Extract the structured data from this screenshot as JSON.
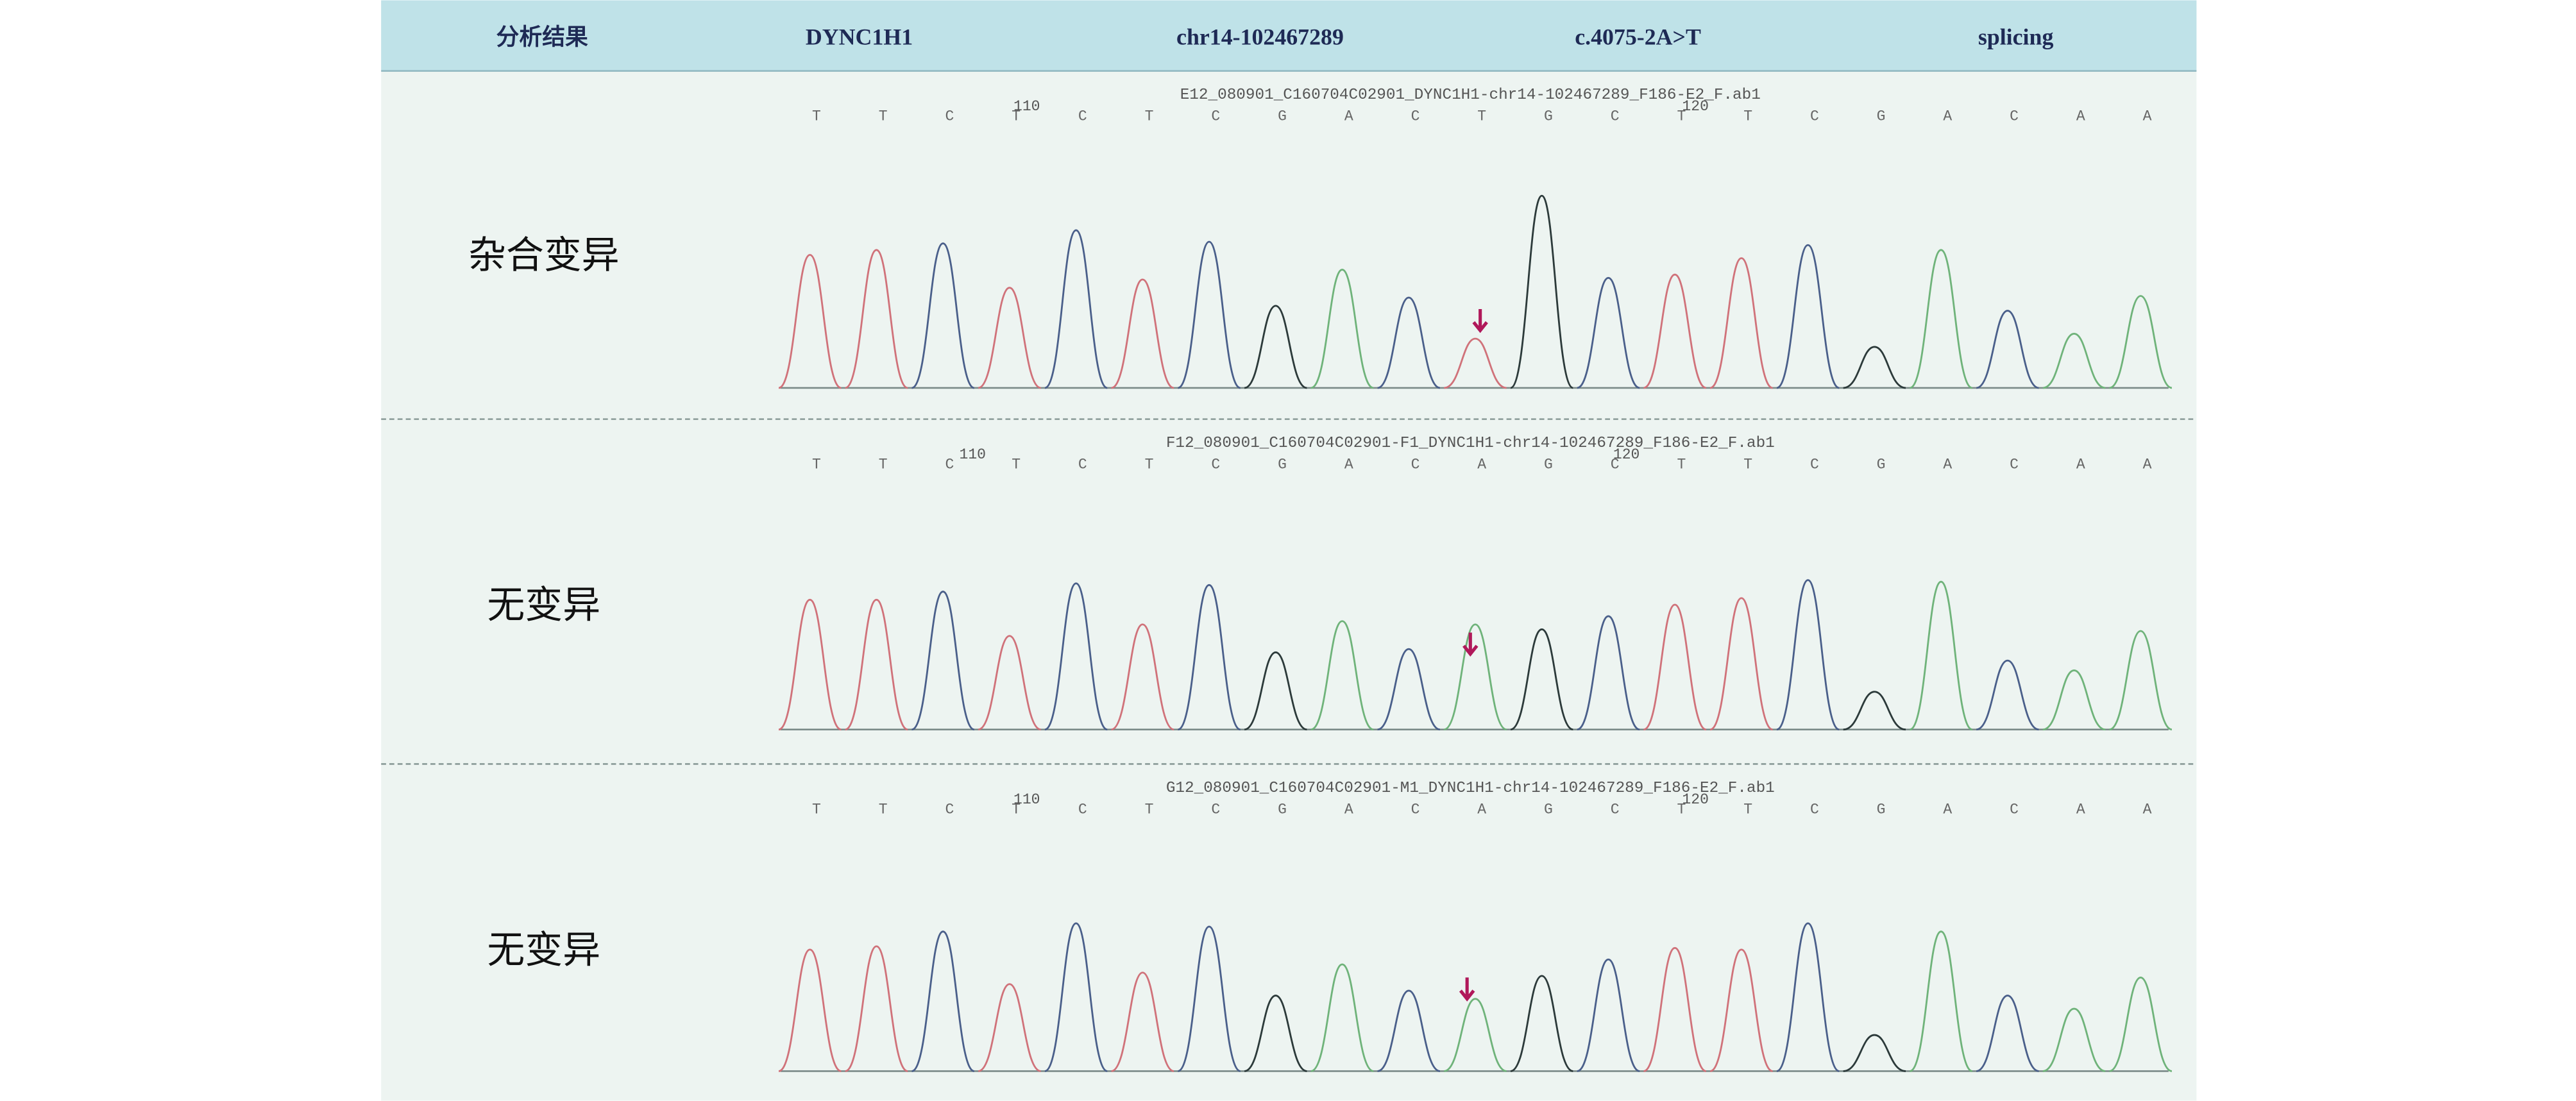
{
  "header": {
    "cells": [
      "分析结果",
      "DYNC1H1",
      "chr14-102467289",
      "c.4075-2A>T",
      "splicing"
    ]
  },
  "panels": [
    {
      "label": "杂合变异",
      "file": "E12_080901_C160704C02901_DYNC1H1-chr14-102467289_F186-E2_F.ab1",
      "positions": [
        "110",
        "120"
      ],
      "bases": [
        "T",
        "T",
        "C",
        "T",
        "C",
        "T",
        "C",
        "G",
        "A",
        "C",
        "T",
        "G",
        "C",
        "T",
        "T",
        "C",
        "G",
        "A",
        "C",
        "A",
        "A"
      ]
    },
    {
      "label": "无变异",
      "file": "F12_080901_C160704C02901-F1_DYNC1H1-chr14-102467289_F186-E2_F.ab1",
      "positions": [
        "110",
        "120"
      ],
      "bases": [
        "T",
        "T",
        "C",
        "T",
        "C",
        "T",
        "C",
        "G",
        "A",
        "C",
        "A",
        "G",
        "C",
        "T",
        "T",
        "C",
        "G",
        "A",
        "C",
        "A",
        "A"
      ]
    },
    {
      "label": "无变异",
      "file": "G12_080901_C160704C02901-M1_DYNC1H1-chr14-102467289_F186-E2_F.ab1",
      "positions": [
        "110",
        "120"
      ],
      "bases": [
        "T",
        "T",
        "C",
        "T",
        "C",
        "T",
        "C",
        "G",
        "A",
        "C",
        "A",
        "G",
        "C",
        "T",
        "T",
        "C",
        "G",
        "A",
        "C",
        "A",
        "A"
      ]
    }
  ]
}
